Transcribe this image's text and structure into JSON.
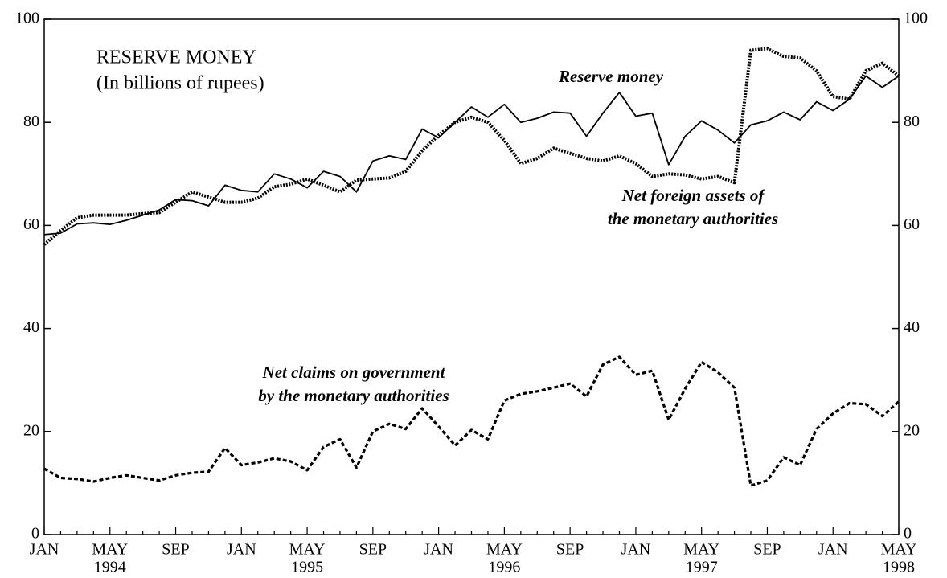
{
  "chart_data": {
    "type": "line",
    "title": "RESERVE MONEY",
    "subtitle": "(In billions of rupees)",
    "categories": [
      "JAN",
      null,
      null,
      null,
      "MAY",
      null,
      null,
      null,
      "SEP",
      null,
      null,
      null,
      "JAN",
      null,
      null,
      null,
      "MAY",
      null,
      null,
      null,
      "SEP",
      null,
      null,
      null,
      "JAN",
      null,
      null,
      null,
      "MAY",
      null,
      null,
      null,
      "SEP",
      null,
      null,
      null,
      "JAN",
      null,
      null,
      null,
      "MAY",
      null,
      null,
      null,
      "SEP",
      null,
      null,
      null,
      "JAN",
      null,
      null,
      null,
      "MAY"
    ],
    "years": [
      "1994",
      "1995",
      "1996",
      "1997",
      "1998"
    ],
    "series": [
      {
        "name": [
          "Reserve money"
        ],
        "color": "#000000",
        "style": "solid",
        "values": [
          58.2,
          58.5,
          60.3,
          60.5,
          60.2,
          61,
          62,
          63,
          65,
          64.8,
          63.8,
          67.8,
          66.8,
          66.5,
          70,
          69,
          67.3,
          70.5,
          69.5,
          66.5,
          72.5,
          73.5,
          72.8,
          78.7,
          77,
          80,
          83,
          81,
          83.5,
          80,
          80.8,
          82,
          81.8,
          77.3,
          81.8,
          85.8,
          81.2,
          81.8,
          71.8,
          77.3,
          80.3,
          78.5,
          76,
          79.5,
          80.3,
          82,
          80.5,
          84,
          82.3,
          84.5,
          89,
          86.8,
          89
        ]
      },
      {
        "name": [
          "Net foreign assets of",
          "the monetary authorities"
        ],
        "color": "#000000",
        "style": "dotted",
        "values": [
          56.3,
          59,
          61.5,
          62,
          62,
          62,
          62.3,
          62.5,
          64.5,
          66.5,
          65.5,
          64.5,
          64.5,
          65.3,
          67.5,
          68,
          69,
          67.8,
          66.5,
          68.8,
          69,
          69.2,
          70.5,
          74.5,
          77.5,
          80,
          81,
          80,
          76.5,
          72,
          73,
          75,
          74,
          73,
          72.5,
          73.5,
          72,
          69.5,
          70,
          69.8,
          69,
          69.5,
          68.3,
          94,
          94.3,
          92.8,
          92.5,
          90,
          85,
          84.5,
          90,
          91.5,
          89
        ]
      },
      {
        "name": [
          "Net claims on government",
          "by the monetary authorities"
        ],
        "color": "#000000",
        "style": "dashed",
        "values": [
          12.8,
          11,
          10.8,
          10.3,
          11,
          11.5,
          11,
          10.5,
          11.5,
          12,
          12.2,
          16.8,
          13.5,
          14,
          14.8,
          14.2,
          12.5,
          17,
          18.5,
          13,
          20,
          21.5,
          20.5,
          24.5,
          21,
          17.3,
          20.3,
          18.5,
          26,
          27.3,
          27.8,
          28.5,
          29.3,
          26.8,
          33,
          34.5,
          31,
          31.8,
          22.3,
          28.3,
          33.5,
          31.5,
          28.5,
          9.5,
          10.5,
          15,
          13.5,
          20.5,
          23.5,
          25.5,
          25.3,
          23,
          25.8
        ]
      }
    ],
    "ylim": [
      0,
      100
    ],
    "yticks": [
      0,
      20,
      40,
      60,
      80,
      100
    ],
    "y2lim": [
      0,
      100
    ],
    "y2ticks": [
      0,
      20,
      40,
      60,
      80,
      100
    ],
    "grid": false
  }
}
